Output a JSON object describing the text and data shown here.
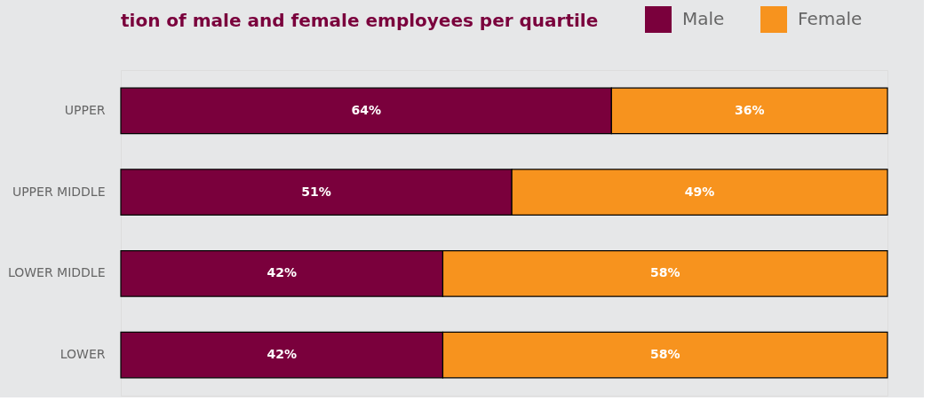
{
  "chart_data": {
    "type": "bar",
    "orientation": "horizontal",
    "stacked": true,
    "title": "tion of male and female employees per quartile",
    "categories": [
      "UPPER",
      "UPPER MIDDLE",
      "LOWER MIDDLE",
      "LOWER"
    ],
    "series": [
      {
        "name": "Male",
        "color": "#7a003c",
        "values": [
          64,
          51,
          42,
          42
        ],
        "value_labels": [
          "64%",
          "51%",
          "42%",
          "42%"
        ]
      },
      {
        "name": "Female",
        "color": "#f7931e",
        "values": [
          36,
          49,
          58,
          58
        ],
        "value_labels": [
          "36%",
          "49%",
          "58%",
          "58%"
        ]
      }
    ],
    "legend": "top right"
  }
}
